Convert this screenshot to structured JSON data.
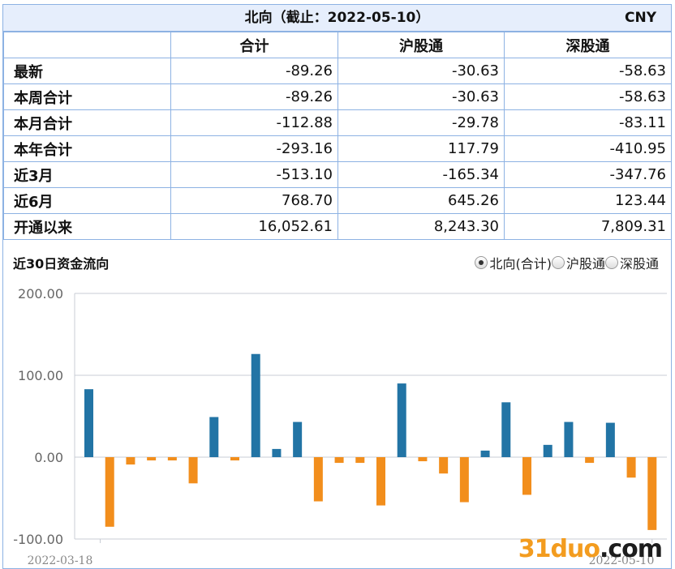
{
  "header": {
    "title": "北向（截止：2022-05-10）",
    "currency": "CNY"
  },
  "table": {
    "columns": [
      "",
      "合计",
      "沪股通",
      "深股通"
    ],
    "rows": [
      {
        "label": "最新",
        "values": [
          "-89.26",
          "-30.63",
          "-58.63"
        ]
      },
      {
        "label": "本周合计",
        "values": [
          "-89.26",
          "-30.63",
          "-58.63"
        ]
      },
      {
        "label": "本月合计",
        "values": [
          "-112.88",
          "-29.78",
          "-83.11"
        ]
      },
      {
        "label": "本年合计",
        "values": [
          "-293.16",
          "117.79",
          "-410.95"
        ]
      },
      {
        "label": "近3月",
        "values": [
          "-513.10",
          "-165.34",
          "-347.76"
        ]
      },
      {
        "label": "近6月",
        "values": [
          "768.70",
          "645.26",
          "123.44"
        ]
      },
      {
        "label": "开通以来",
        "values": [
          "16,052.61",
          "8,243.30",
          "7,809.31"
        ]
      }
    ]
  },
  "chart_section": {
    "title": "近30日资金流向",
    "legend": [
      {
        "label": "北向(合计)",
        "selected": true
      },
      {
        "label": "沪股通",
        "selected": false
      },
      {
        "label": "深股通",
        "selected": false
      }
    ]
  },
  "watermark": {
    "part1": "31duo",
    "part2": ".com"
  },
  "colors": {
    "positive": "#2274a5",
    "negative": "#f28e1c",
    "grid": "#c8ccd4",
    "border": "#8db2e3",
    "header_bg": "#e6eefc"
  },
  "chart_data": {
    "type": "bar",
    "ylim": [
      -100,
      200
    ],
    "yticks": [
      "200.00",
      "100.00",
      "0.00",
      "-100.00"
    ],
    "ytick_values": [
      200,
      100,
      0,
      -100
    ],
    "x_start_label": "2022-03-18",
    "x_end_label": "2022-05-10",
    "values": [
      83,
      -85,
      -9,
      -4,
      -4,
      -32,
      49,
      -4,
      126,
      10,
      43,
      -54,
      -7,
      -7,
      -59,
      90,
      -5,
      -20,
      -55,
      8,
      67,
      -46,
      15,
      43,
      -7,
      42,
      -25,
      -89
    ]
  }
}
